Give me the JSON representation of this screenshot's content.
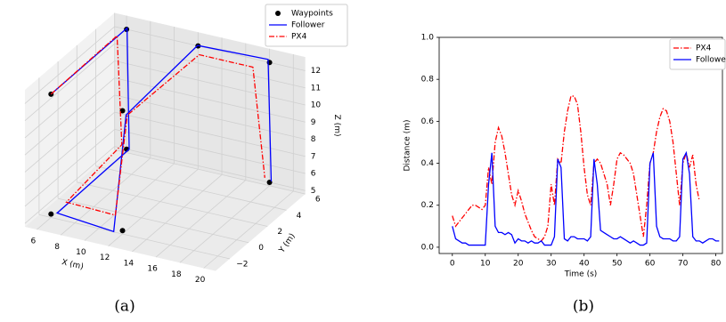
{
  "chart_data": [
    {
      "type": "line3d",
      "caption": "(a)",
      "xlabel": "X (m)",
      "ylabel": "Y (m)",
      "zlabel": "Z (m)",
      "xlim": [
        5,
        21
      ],
      "ylim": [
        -3.5,
        6
      ],
      "zlim": [
        4.8,
        12.8
      ],
      "xticks": [
        6,
        8,
        10,
        12,
        14,
        16,
        18,
        20
      ],
      "yticks": [
        {
          "value": -2,
          "label": "−2"
        },
        0,
        2,
        4,
        6
      ],
      "zticks": [
        5,
        6,
        7,
        8,
        9,
        10,
        11,
        12
      ],
      "grid": true,
      "legend": "upper right",
      "series": [
        {
          "name": "Waypoints",
          "color": "#000000",
          "linestyle": "none",
          "marker": "o",
          "x": [
            6,
            6,
            6,
            6,
            12,
            12,
            12,
            18,
            18
          ],
          "y": [
            -2,
            6,
            6,
            -2,
            -2,
            -2,
            6,
            6,
            6
          ],
          "z": [
            12,
            12,
            5,
            5,
            5,
            12,
            12,
            12,
            5
          ]
        },
        {
          "name": "Follower",
          "color": "#0000ff",
          "linestyle": "solid",
          "marker": "none",
          "x": [
            6,
            6.2,
            6.3,
            6.2,
            11.5,
            12.3,
            12.2,
            17.8,
            18.3
          ],
          "y": [
            -2,
            5.8,
            5.9,
            -1.6,
            -2.3,
            -2,
            5.7,
            6.1,
            5.8
          ],
          "z": [
            12,
            12.2,
            5.1,
            4.9,
            5,
            11.8,
            12.2,
            12.1,
            5.2
          ]
        },
        {
          "name": "PX4",
          "color": "#ff0000",
          "linestyle": "dashdot",
          "marker": "none",
          "x": [
            6,
            5.6,
            6,
            6.5,
            11,
            12,
            12.5,
            17,
            18
          ],
          "y": [
            -2,
            5.5,
            5.5,
            -1,
            -1.5,
            -1.5,
            5.5,
            5.5,
            5.5
          ],
          "z": [
            12,
            11.8,
            5.5,
            5.3,
            5.5,
            11.5,
            11.8,
            11.8,
            5.5
          ]
        }
      ]
    },
    {
      "type": "line",
      "caption": "(b)",
      "xlabel": "Time (s)",
      "ylabel": "Distance (m)",
      "xlim": [
        -4,
        82
      ],
      "ylim": [
        -0.03,
        1.0
      ],
      "xticks": [
        0,
        10,
        20,
        30,
        40,
        50,
        60,
        70,
        80
      ],
      "yticks": [
        {
          "value": 0,
          "label": "0.0"
        },
        {
          "value": 0.2,
          "label": "0.2"
        },
        {
          "value": 0.4,
          "label": "0.4"
        },
        {
          "value": 0.6,
          "label": "0.6"
        },
        {
          "value": 0.8,
          "label": "0.8"
        },
        {
          "value": 1.0,
          "label": "1.0"
        }
      ],
      "grid": false,
      "legend": "upper right",
      "series": [
        {
          "name": "PX4",
          "color": "#ff0000",
          "linestyle": "dashdot",
          "x": [
            0,
            1,
            2,
            3,
            4,
            5,
            6,
            7,
            8,
            9,
            10,
            11,
            12,
            13,
            14,
            15,
            16,
            17,
            18,
            19,
            20,
            21,
            22,
            23,
            24,
            25,
            26,
            27,
            28,
            29,
            30,
            31,
            32,
            33,
            34,
            35,
            36,
            37,
            38,
            39,
            40,
            41,
            42,
            43,
            44,
            45,
            46,
            47,
            48,
            49,
            50,
            51,
            52,
            53,
            54,
            55,
            56,
            57,
            58,
            59,
            60,
            61,
            62,
            63,
            64,
            65,
            66,
            67,
            68,
            69,
            70,
            71,
            72,
            73,
            74,
            75
          ],
          "values": [
            0.15,
            0.1,
            0.12,
            0.14,
            0.16,
            0.18,
            0.2,
            0.2,
            0.19,
            0.18,
            0.2,
            0.38,
            0.3,
            0.5,
            0.57,
            0.53,
            0.45,
            0.35,
            0.25,
            0.2,
            0.27,
            0.22,
            0.16,
            0.12,
            0.08,
            0.05,
            0.04,
            0.03,
            0.05,
            0.1,
            0.3,
            0.2,
            0.42,
            0.4,
            0.55,
            0.65,
            0.72,
            0.72,
            0.68,
            0.55,
            0.38,
            0.25,
            0.2,
            0.4,
            0.42,
            0.4,
            0.35,
            0.3,
            0.2,
            0.3,
            0.42,
            0.45,
            0.44,
            0.42,
            0.4,
            0.35,
            0.25,
            0.15,
            0.05,
            0.2,
            0.4,
            0.45,
            0.55,
            0.62,
            0.66,
            0.65,
            0.6,
            0.5,
            0.35,
            0.2,
            0.4,
            0.45,
            0.38,
            0.44,
            0.3,
            0.22
          ]
        },
        {
          "name": "Follower",
          "color": "#0000ff",
          "linestyle": "solid",
          "x": [
            0,
            1,
            2,
            3,
            4,
            5,
            6,
            7,
            8,
            9,
            10,
            11,
            12,
            13,
            14,
            15,
            16,
            17,
            18,
            19,
            20,
            21,
            22,
            23,
            24,
            25,
            26,
            27,
            28,
            29,
            30,
            31,
            32,
            33,
            34,
            35,
            36,
            37,
            38,
            39,
            40,
            41,
            42,
            43,
            44,
            45,
            46,
            47,
            48,
            49,
            50,
            51,
            52,
            53,
            54,
            55,
            56,
            57,
            58,
            59,
            60,
            61,
            62,
            63,
            64,
            65,
            66,
            67,
            68,
            69,
            70,
            71,
            72,
            73,
            74,
            75,
            76,
            77,
            78,
            79,
            80,
            81
          ],
          "values": [
            0.1,
            0.04,
            0.03,
            0.02,
            0.02,
            0.01,
            0.01,
            0.01,
            0.01,
            0.01,
            0.01,
            0.3,
            0.45,
            0.1,
            0.07,
            0.07,
            0.06,
            0.07,
            0.06,
            0.02,
            0.04,
            0.03,
            0.03,
            0.02,
            0.03,
            0.02,
            0.02,
            0.03,
            0.01,
            0.01,
            0.01,
            0.05,
            0.42,
            0.38,
            0.04,
            0.03,
            0.05,
            0.05,
            0.04,
            0.04,
            0.04,
            0.03,
            0.05,
            0.42,
            0.3,
            0.08,
            0.07,
            0.06,
            0.05,
            0.04,
            0.04,
            0.05,
            0.04,
            0.03,
            0.02,
            0.03,
            0.02,
            0.01,
            0.01,
            0.02,
            0.4,
            0.45,
            0.1,
            0.05,
            0.04,
            0.04,
            0.04,
            0.03,
            0.03,
            0.05,
            0.42,
            0.45,
            0.35,
            0.05,
            0.03,
            0.03,
            0.02,
            0.03,
            0.04,
            0.04,
            0.03,
            0.03
          ]
        }
      ]
    }
  ]
}
